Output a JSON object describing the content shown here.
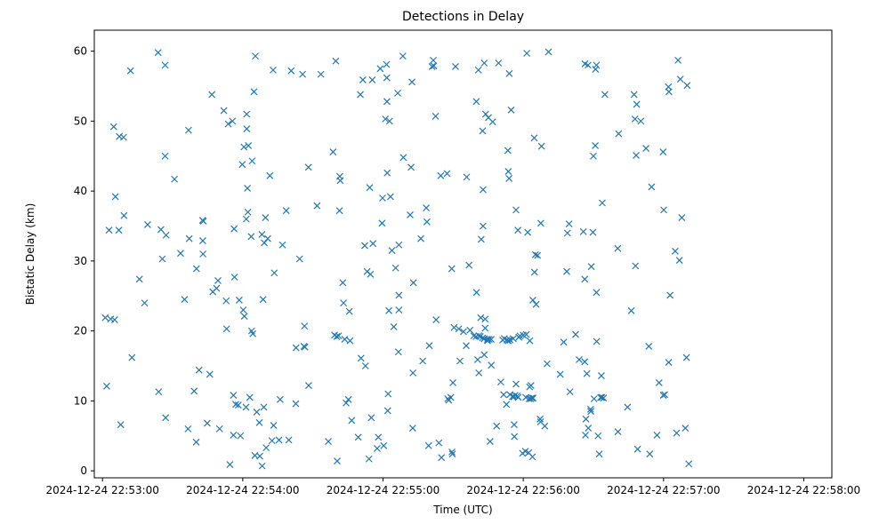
{
  "chart_data": {
    "type": "scatter",
    "title": "Detections in Delay",
    "xlabel": "Time (UTC)",
    "ylabel": "Bistatic Delay (km)",
    "marker": "x",
    "color": "#1f77b4",
    "x_unit": "seconds after 2024-12-24 22:53:00",
    "xlim": [
      -3.5,
      312
    ],
    "ylim": [
      -1.0,
      63.0
    ],
    "x_ticks": [
      {
        "value": 0,
        "label": "2024-12-24 22:53:00"
      },
      {
        "value": 60,
        "label": "2024-12-24 22:54:00"
      },
      {
        "value": 120,
        "label": "2024-12-24 22:55:00"
      },
      {
        "value": 180,
        "label": "2024-12-24 22:56:00"
      },
      {
        "value": 240,
        "label": "2024-12-24 22:57:00"
      },
      {
        "value": 300,
        "label": "2024-12-24 22:58:00"
      }
    ],
    "y_ticks": [
      {
        "value": 0,
        "label": "0"
      },
      {
        "value": 10,
        "label": "10"
      },
      {
        "value": 20,
        "label": "20"
      },
      {
        "value": 30,
        "label": "30"
      },
      {
        "value": 40,
        "label": "40"
      },
      {
        "value": 50,
        "label": "50"
      },
      {
        "value": 60,
        "label": "60"
      }
    ],
    "points": [
      [
        1.2,
        21.9
      ],
      [
        1.8,
        12.1
      ],
      [
        2.8,
        34.4
      ],
      [
        3.5,
        21.7
      ],
      [
        4.8,
        49.2
      ],
      [
        5.2,
        21.6
      ],
      [
        5.5,
        39.2
      ],
      [
        7.0,
        34.4
      ],
      [
        7.2,
        47.8
      ],
      [
        7.8,
        6.6
      ],
      [
        9.0,
        47.7
      ],
      [
        9.2,
        36.5
      ],
      [
        12.0,
        57.2
      ],
      [
        12.6,
        16.2
      ],
      [
        15.8,
        27.4
      ],
      [
        18.0,
        24.0
      ],
      [
        19.3,
        35.2
      ],
      [
        23.8,
        59.8
      ],
      [
        24.0,
        11.3
      ],
      [
        25.0,
        34.5
      ],
      [
        25.6,
        30.3
      ],
      [
        26.8,
        58.0
      ],
      [
        26.8,
        45.0
      ],
      [
        27.0,
        7.6
      ],
      [
        27.2,
        33.7
      ],
      [
        30.8,
        41.7
      ],
      [
        33.4,
        31.1
      ],
      [
        35.1,
        24.5
      ],
      [
        36.6,
        6.0
      ],
      [
        36.8,
        48.7
      ],
      [
        37.1,
        33.2
      ],
      [
        39.2,
        11.4
      ],
      [
        40.1,
        4.1
      ],
      [
        40.2,
        28.9
      ],
      [
        41.3,
        14.4
      ],
      [
        42.8,
        35.8
      ],
      [
        42.9,
        32.9
      ],
      [
        43.0,
        31.0
      ],
      [
        43.2,
        35.7
      ],
      [
        44.8,
        6.8
      ],
      [
        45.9,
        13.8
      ],
      [
        46.8,
        53.8
      ],
      [
        47.2,
        25.6
      ],
      [
        48.8,
        26.1
      ],
      [
        49.4,
        27.2
      ],
      [
        50.1,
        6.0
      ],
      [
        51.9,
        51.5
      ],
      [
        52.9,
        24.3
      ],
      [
        53.1,
        20.3
      ],
      [
        53.8,
        49.6
      ],
      [
        54.5,
        0.9
      ],
      [
        55.6,
        50.0
      ],
      [
        56.0,
        5.1
      ],
      [
        56.0,
        10.8
      ],
      [
        56.3,
        34.6
      ],
      [
        56.5,
        27.7
      ],
      [
        57.0,
        9.5
      ],
      [
        58.1,
        9.4
      ],
      [
        58.5,
        24.4
      ],
      [
        59.0,
        5.0
      ],
      [
        59.8,
        43.8
      ],
      [
        60.2,
        23.0
      ],
      [
        60.5,
        46.3
      ],
      [
        60.7,
        22.1
      ],
      [
        61.4,
        9.1
      ],
      [
        61.5,
        36.0
      ],
      [
        61.7,
        51.0
      ],
      [
        61.7,
        48.9
      ],
      [
        62.0,
        40.4
      ],
      [
        62.2,
        37.0
      ],
      [
        62.4,
        46.5
      ],
      [
        63.0,
        10.5
      ],
      [
        63.8,
        20.0
      ],
      [
        64.0,
        44.3
      ],
      [
        64.3,
        19.6
      ],
      [
        64.8,
        54.2
      ],
      [
        63.6,
        33.5
      ],
      [
        65.2,
        2.2
      ],
      [
        65.4,
        59.3
      ],
      [
        66.0,
        8.4
      ],
      [
        67.1,
        6.9
      ],
      [
        67.3,
        2.1
      ],
      [
        68.2,
        33.8
      ],
      [
        68.3,
        0.7
      ],
      [
        68.7,
        24.5
      ],
      [
        69.2,
        32.6
      ],
      [
        69.0,
        9.1
      ],
      [
        69.7,
        36.2
      ],
      [
        70.0,
        3.3
      ],
      [
        70.7,
        33.2
      ],
      [
        71.6,
        42.2
      ],
      [
        72.5,
        4.3
      ],
      [
        73.0,
        57.3
      ],
      [
        73.2,
        6.5
      ],
      [
        73.5,
        28.3
      ],
      [
        75.5,
        4.4
      ],
      [
        76.0,
        10.2
      ],
      [
        77.0,
        32.3
      ],
      [
        78.6,
        37.2
      ],
      [
        79.7,
        4.4
      ],
      [
        80.7,
        57.2
      ],
      [
        82.7,
        9.6
      ],
      [
        82.8,
        17.6
      ],
      [
        84.3,
        30.3
      ],
      [
        85.6,
        56.7
      ],
      [
        86.2,
        17.8
      ],
      [
        86.4,
        20.7
      ],
      [
        86.6,
        17.7
      ],
      [
        88.1,
        43.4
      ],
      [
        88.2,
        12.2
      ],
      [
        91.8,
        37.9
      ],
      [
        93.4,
        56.7
      ],
      [
        96.6,
        4.2
      ],
      [
        98.6,
        45.6
      ],
      [
        99.3,
        19.4
      ],
      [
        99.8,
        58.6
      ],
      [
        100.2,
        19.2
      ],
      [
        100.4,
        1.4
      ],
      [
        101.0,
        19.3
      ],
      [
        101.4,
        37.2
      ],
      [
        101.5,
        42.1
      ],
      [
        101.7,
        41.5
      ],
      [
        102.8,
        26.9
      ],
      [
        103.1,
        24.0
      ],
      [
        103.6,
        18.8
      ],
      [
        104.2,
        9.7
      ],
      [
        105.2,
        10.2
      ],
      [
        105.6,
        22.8
      ],
      [
        105.9,
        18.6
      ],
      [
        106.6,
        7.2
      ],
      [
        109.4,
        4.8
      ],
      [
        110.3,
        53.8
      ],
      [
        110.6,
        16.1
      ],
      [
        111.4,
        55.9
      ],
      [
        112.2,
        32.2
      ],
      [
        112.5,
        15.0
      ],
      [
        113.2,
        28.5
      ],
      [
        114.0,
        1.7
      ],
      [
        114.3,
        40.5
      ],
      [
        114.6,
        28.1
      ],
      [
        115.0,
        7.6
      ],
      [
        115.4,
        55.9
      ],
      [
        115.7,
        32.5
      ],
      [
        117.5,
        3.2
      ],
      [
        118.0,
        4.8
      ],
      [
        118.8,
        57.5
      ],
      [
        119.6,
        35.4
      ],
      [
        119.8,
        39.0
      ],
      [
        120.3,
        3.6
      ],
      [
        121.0,
        50.3
      ],
      [
        121.5,
        58.1
      ],
      [
        121.6,
        56.2
      ],
      [
        121.7,
        52.8
      ],
      [
        121.8,
        42.6
      ],
      [
        122.0,
        8.6
      ],
      [
        122.2,
        11.0
      ],
      [
        122.5,
        22.9
      ],
      [
        122.8,
        50.0
      ],
      [
        123.2,
        39.2
      ],
      [
        123.8,
        31.5
      ],
      [
        124.6,
        20.6
      ],
      [
        125.4,
        29.0
      ],
      [
        126.3,
        54.0
      ],
      [
        126.6,
        17.0
      ],
      [
        126.8,
        32.3
      ],
      [
        126.8,
        25.1
      ],
      [
        126.8,
        23.0
      ],
      [
        128.5,
        59.3
      ],
      [
        128.7,
        44.8
      ],
      [
        131.6,
        36.6
      ],
      [
        132.0,
        43.4
      ],
      [
        132.4,
        55.6
      ],
      [
        132.7,
        6.1
      ],
      [
        132.8,
        14.0
      ],
      [
        133.0,
        26.9
      ],
      [
        136.2,
        33.2
      ],
      [
        137.0,
        15.7
      ],
      [
        138.5,
        37.6
      ],
      [
        138.8,
        35.6
      ],
      [
        139.5,
        3.6
      ],
      [
        139.8,
        17.9
      ],
      [
        141.0,
        57.8
      ],
      [
        141.5,
        58.7
      ],
      [
        141.7,
        57.9
      ],
      [
        142.5,
        50.7
      ],
      [
        142.7,
        21.6
      ],
      [
        143.9,
        4.0
      ],
      [
        144.7,
        42.2
      ],
      [
        145.0,
        1.9
      ],
      [
        147.4,
        42.5
      ],
      [
        147.7,
        10.3
      ],
      [
        148.1,
        10.1
      ],
      [
        149.0,
        10.5
      ],
      [
        149.4,
        28.9
      ],
      [
        149.5,
        2.7
      ],
      [
        149.7,
        2.4
      ],
      [
        149.9,
        12.6
      ],
      [
        150.4,
        20.5
      ],
      [
        151.0,
        57.8
      ],
      [
        152.4,
        20.3
      ],
      [
        152.9,
        15.7
      ],
      [
        154.4,
        19.9
      ],
      [
        155.6,
        17.9
      ],
      [
        155.8,
        42.0
      ],
      [
        156.8,
        29.4
      ],
      [
        157.2,
        20.1
      ],
      [
        158.8,
        19.3
      ],
      [
        159.8,
        19.2
      ],
      [
        159.9,
        52.8
      ],
      [
        160.0,
        25.5
      ],
      [
        160.5,
        15.9
      ],
      [
        160.8,
        57.3
      ],
      [
        161.0,
        19.3
      ],
      [
        161.0,
        14.0
      ],
      [
        161.6,
        19.2
      ],
      [
        161.8,
        21.9
      ],
      [
        162.0,
        33.1
      ],
      [
        162.6,
        48.6
      ],
      [
        162.6,
        19.0
      ],
      [
        162.8,
        40.2
      ],
      [
        162.8,
        35.0
      ],
      [
        163.3,
        18.9
      ],
      [
        163.3,
        16.6
      ],
      [
        163.3,
        58.3
      ],
      [
        163.7,
        21.7
      ],
      [
        163.7,
        20.4
      ],
      [
        163.9,
        51.0
      ],
      [
        164.7,
        18.8
      ],
      [
        164.7,
        18.6
      ],
      [
        165.1,
        50.5
      ],
      [
        165.4,
        18.8
      ],
      [
        165.8,
        4.2
      ],
      [
        166.3,
        18.8
      ],
      [
        166.3,
        15.1
      ],
      [
        166.9,
        49.9
      ],
      [
        168.6,
        6.4
      ],
      [
        169.4,
        58.3
      ],
      [
        170.4,
        12.7
      ],
      [
        171.2,
        18.7
      ],
      [
        171.6,
        10.9
      ],
      [
        171.9,
        18.9
      ],
      [
        172.8,
        9.5
      ],
      [
        173.0,
        18.7
      ],
      [
        173.4,
        45.8
      ],
      [
        173.6,
        42.8
      ],
      [
        173.6,
        18.6
      ],
      [
        173.9,
        41.8
      ],
      [
        174.0,
        56.8
      ],
      [
        174.3,
        10.9
      ],
      [
        174.4,
        18.7
      ],
      [
        174.8,
        51.6
      ],
      [
        175.4,
        10.6
      ],
      [
        175.7,
        18.9
      ],
      [
        176.0,
        10.6
      ],
      [
        176.1,
        6.6
      ],
      [
        176.2,
        4.9
      ],
      [
        176.5,
        10.8
      ],
      [
        176.9,
        37.3
      ],
      [
        176.9,
        12.4
      ],
      [
        177.4,
        10.7
      ],
      [
        177.7,
        34.4
      ],
      [
        177.8,
        10.5
      ],
      [
        178.1,
        19.1
      ],
      [
        178.6,
        19.3
      ],
      [
        179.7,
        2.5
      ],
      [
        180.0,
        19.4
      ],
      [
        180.9,
        2.8
      ],
      [
        181.1,
        10.5
      ],
      [
        181.3,
        19.5
      ],
      [
        181.5,
        59.7
      ],
      [
        181.9,
        34.1
      ],
      [
        182.3,
        2.6
      ],
      [
        182.5,
        10.3
      ],
      [
        182.8,
        18.6
      ],
      [
        182.7,
        12.0
      ],
      [
        183.1,
        10.3
      ],
      [
        183.3,
        12.2
      ],
      [
        183.7,
        10.4
      ],
      [
        183.9,
        2.0
      ],
      [
        184.1,
        24.4
      ],
      [
        184.2,
        10.4
      ],
      [
        184.7,
        47.6
      ],
      [
        184.8,
        28.4
      ],
      [
        185.2,
        30.9
      ],
      [
        185.5,
        23.8
      ],
      [
        186.1,
        30.8
      ],
      [
        187.2,
        7.4
      ],
      [
        187.4,
        7.0
      ],
      [
        187.5,
        35.4
      ],
      [
        187.8,
        46.4
      ],
      [
        189.2,
        6.4
      ],
      [
        190.2,
        15.3
      ],
      [
        190.8,
        59.9
      ],
      [
        195.8,
        13.8
      ],
      [
        197.3,
        18.4
      ],
      [
        198.6,
        28.5
      ],
      [
        198.9,
        34.0
      ],
      [
        199.6,
        35.3
      ],
      [
        200.0,
        11.3
      ],
      [
        202.4,
        19.5
      ],
      [
        203.9,
        15.9
      ],
      [
        205.7,
        34.2
      ],
      [
        206.3,
        15.6
      ],
      [
        206.3,
        27.4
      ],
      [
        206.4,
        58.2
      ],
      [
        206.6,
        5.1
      ],
      [
        206.8,
        7.4
      ],
      [
        207.2,
        13.9
      ],
      [
        207.7,
        58.0
      ],
      [
        207.8,
        6.1
      ],
      [
        208.8,
        8.8
      ],
      [
        208.9,
        8.5
      ],
      [
        209.1,
        29.2
      ],
      [
        209.8,
        34.1
      ],
      [
        210.0,
        45.0
      ],
      [
        210.3,
        10.3
      ],
      [
        210.8,
        46.5
      ],
      [
        210.9,
        57.4
      ],
      [
        211.3,
        58.0
      ],
      [
        211.3,
        25.5
      ],
      [
        211.4,
        18.5
      ],
      [
        212.0,
        5.0
      ],
      [
        212.5,
        2.4
      ],
      [
        213.1,
        10.5
      ],
      [
        213.4,
        13.6
      ],
      [
        213.6,
        10.5
      ],
      [
        213.8,
        38.3
      ],
      [
        214.3,
        10.4
      ],
      [
        214.9,
        53.8
      ],
      [
        220.4,
        31.8
      ],
      [
        220.5,
        5.6
      ],
      [
        220.8,
        48.2
      ],
      [
        224.6,
        9.1
      ],
      [
        226.2,
        22.9
      ],
      [
        227.4,
        53.8
      ],
      [
        227.8,
        50.3
      ],
      [
        228.0,
        29.3
      ],
      [
        228.3,
        45.1
      ],
      [
        228.5,
        52.4
      ],
      [
        228.9,
        3.1
      ],
      [
        230.3,
        50.0
      ],
      [
        232.5,
        46.1
      ],
      [
        233.7,
        17.8
      ],
      [
        234.1,
        2.4
      ],
      [
        234.9,
        40.6
      ],
      [
        237.2,
        5.1
      ],
      [
        238.1,
        12.6
      ],
      [
        239.8,
        45.6
      ],
      [
        239.9,
        10.8
      ],
      [
        240.1,
        37.3
      ],
      [
        240.5,
        10.9
      ],
      [
        242.1,
        54.9
      ],
      [
        242.2,
        15.5
      ],
      [
        242.3,
        54.2
      ],
      [
        242.8,
        25.1
      ],
      [
        245.0,
        31.4
      ],
      [
        245.6,
        5.4
      ],
      [
        246.2,
        58.7
      ],
      [
        246.8,
        30.1
      ],
      [
        247.2,
        56.0
      ],
      [
        247.8,
        36.2
      ],
      [
        249.3,
        6.1
      ],
      [
        249.8,
        16.2
      ],
      [
        250.1,
        55.1
      ],
      [
        250.8,
        1.0
      ]
    ]
  }
}
